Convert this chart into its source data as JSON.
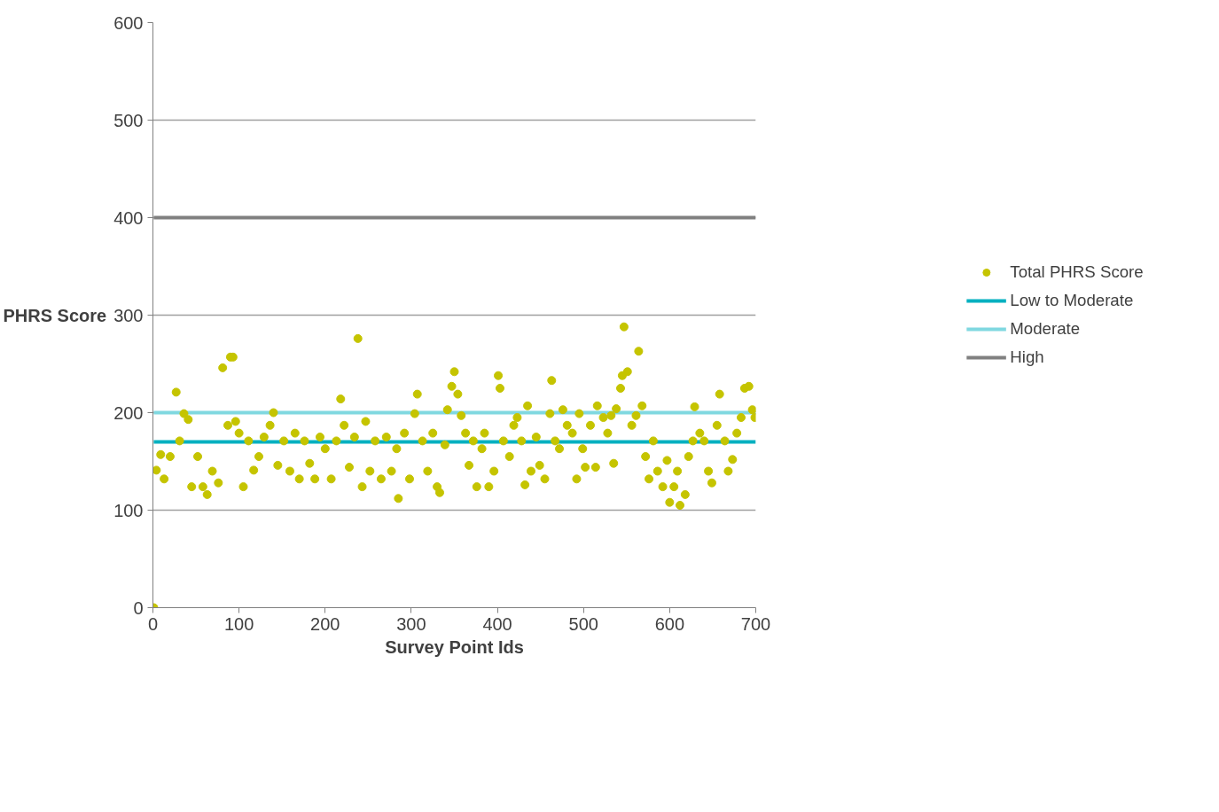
{
  "chart_data": {
    "type": "scatter",
    "xlabel": "Survey Point Ids",
    "ylabel": "PHRS Score",
    "xlim": [
      0,
      700
    ],
    "ylim": [
      0,
      600
    ],
    "xticks": [
      0,
      100,
      200,
      300,
      400,
      500,
      600,
      700
    ],
    "yticks": [
      0,
      100,
      200,
      300,
      400,
      500,
      600
    ],
    "grid": "y",
    "legend": "right",
    "series": [
      {
        "name": "Total PHRS Score",
        "marker": "circle",
        "color": "#c5c400",
        "x": [
          1,
          4,
          9,
          13,
          20,
          27,
          31,
          36,
          41,
          45,
          52,
          58,
          63,
          69,
          76,
          81,
          87,
          90,
          93,
          96,
          100,
          105,
          111,
          117,
          123,
          129,
          136,
          140,
          145,
          152,
          159,
          165,
          170,
          176,
          182,
          188,
          194,
          200,
          207,
          213,
          218,
          222,
          228,
          234,
          238,
          243,
          247,
          252,
          258,
          265,
          271,
          277,
          283,
          285,
          292,
          298,
          304,
          307,
          313,
          319,
          325,
          330,
          333,
          339,
          342,
          347,
          350,
          354,
          358,
          363,
          367,
          372,
          376,
          382,
          385,
          390,
          396,
          401,
          403,
          407,
          414,
          419,
          423,
          428,
          432,
          435,
          439,
          445,
          449,
          455,
          461,
          463,
          467,
          472,
          476,
          481,
          487,
          492,
          495,
          499,
          502,
          508,
          514,
          516,
          523,
          528,
          532,
          535,
          538,
          543,
          545,
          547,
          551,
          556,
          561,
          564,
          568,
          572,
          576,
          581,
          586,
          592,
          597,
          600,
          605,
          609,
          612,
          618,
          622,
          627,
          629,
          635,
          640,
          645,
          649,
          655,
          658,
          664,
          668,
          673,
          678,
          683,
          687,
          692,
          696,
          699
        ],
        "values": [
          0,
          141,
          157,
          132,
          155,
          221,
          171,
          199,
          193,
          124,
          155,
          124,
          116,
          140,
          128,
          246,
          187,
          257,
          257,
          191,
          179,
          124,
          171,
          141,
          155,
          175,
          187,
          200,
          146,
          171,
          140,
          179,
          132,
          171,
          148,
          132,
          175,
          163,
          132,
          171,
          214,
          187,
          144,
          175,
          276,
          124,
          191,
          140,
          171,
          132,
          175,
          140,
          163,
          112,
          179,
          132,
          199,
          219,
          171,
          140,
          179,
          124,
          118,
          167,
          203,
          227,
          242,
          219,
          197,
          179,
          146,
          171,
          124,
          163,
          179,
          124,
          140,
          238,
          225,
          171,
          155,
          187,
          195,
          171,
          126,
          207,
          140,
          175,
          146,
          132,
          199,
          233,
          171,
          163,
          203,
          187,
          179,
          132,
          199,
          163,
          144,
          187,
          144,
          207,
          195,
          179,
          197,
          148,
          204,
          225,
          238,
          288,
          242,
          187,
          197,
          263,
          207,
          155,
          132,
          171,
          140,
          124,
          151,
          108,
          124,
          140,
          105,
          116,
          155,
          171,
          206,
          179,
          171,
          140,
          128,
          187,
          219,
          171,
          140,
          152,
          179,
          195,
          225,
          227,
          203,
          195
        ]
      },
      {
        "name": "Low to Moderate",
        "type": "line",
        "color": "#00b0c0",
        "x": [
          1,
          700
        ],
        "values": [
          170,
          170
        ]
      },
      {
        "name": "Moderate",
        "type": "line",
        "color": "#80d8e0",
        "x": [
          1,
          700
        ],
        "values": [
          200,
          200
        ]
      },
      {
        "name": "High",
        "type": "line",
        "color": "#808080",
        "x": [
          1,
          700
        ],
        "values": [
          400,
          400
        ]
      }
    ]
  }
}
